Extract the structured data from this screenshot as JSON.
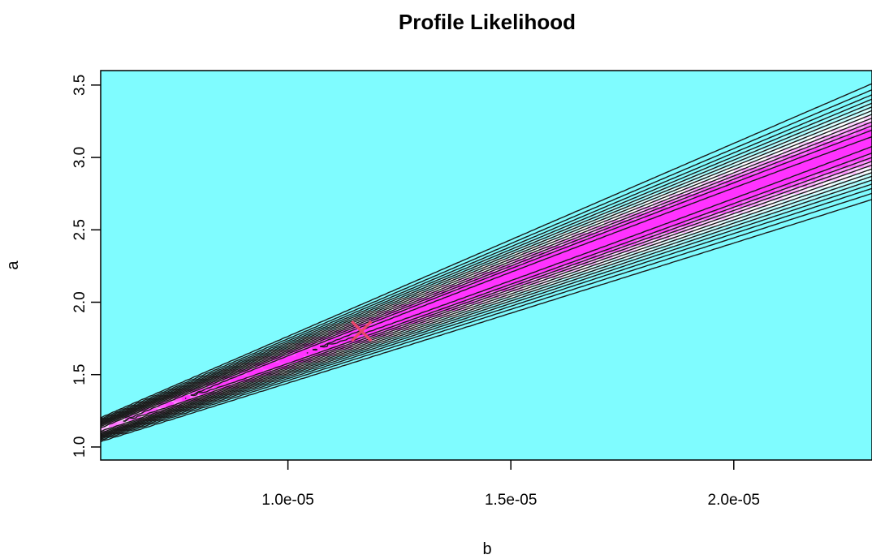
{
  "chart_data": {
    "type": "heatmap",
    "title": "Profile Likelihood",
    "xlabel": "b",
    "ylabel": "a",
    "xlim": [
      5.8e-06,
      2.31e-05
    ],
    "ylim": [
      0.91,
      3.6
    ],
    "x_ticks": [
      {
        "value": 1e-05,
        "label": "1.0e-05"
      },
      {
        "value": 1.5e-05,
        "label": "1.5e-05"
      },
      {
        "value": 2e-05,
        "label": "2.0e-05"
      }
    ],
    "y_ticks": [
      {
        "value": 1.0,
        "label": "1.0"
      },
      {
        "value": 1.5,
        "label": "1.5"
      },
      {
        "value": 2.0,
        "label": "2.0"
      },
      {
        "value": 2.5,
        "label": "2.5"
      },
      {
        "value": 3.0,
        "label": "3.0"
      },
      {
        "value": 3.5,
        "label": "3.5"
      }
    ],
    "ridge_slope_a_per_b": 115000,
    "ridge_start": {
      "b": 5.8e-06,
      "a": 1.12
    },
    "maximum_point": {
      "b": 1.165e-05,
      "a": 1.8,
      "marker": "x"
    },
    "contour_levels": [
      0.95,
      0.85,
      0.75,
      0.65,
      0.55,
      0.45,
      0.36,
      0.28,
      0.21,
      0.15,
      0.1,
      0.06,
      0.03
    ],
    "colors": {
      "low": "#7ffcff",
      "mid": "#ffffff",
      "high": "#ff33ff",
      "contour": "#1a1a1a",
      "marker": "#e8476a",
      "frame": "#000000"
    },
    "grid": false,
    "legend": "none"
  }
}
